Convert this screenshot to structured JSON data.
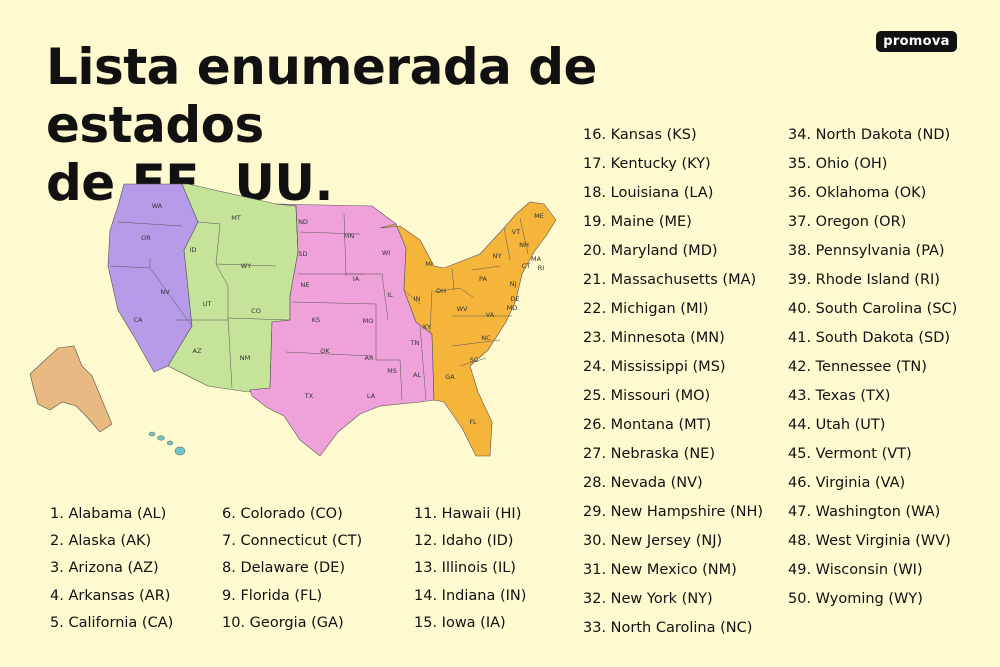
{
  "brand": {
    "logo_text": "promova"
  },
  "title": {
    "line1": "Lista enumerada de estados",
    "line2": "de EE. UU."
  },
  "colors": {
    "background": "#FEF9CF",
    "pacific": "#B69BE9",
    "mountain": "#C6E39A",
    "central": "#EFA2D9",
    "eastern": "#F5B53A",
    "alaska": "#E8B980",
    "hawaii": "#6FC7C6"
  },
  "map": {
    "state_labels": [
      "WA",
      "OR",
      "CA",
      "NV",
      "ID",
      "MT",
      "WY",
      "UT",
      "CO",
      "AZ",
      "NM",
      "ND",
      "SD",
      "NE",
      "KS",
      "OK",
      "TX",
      "MN",
      "IA",
      "MO",
      "AR",
      "LA",
      "WI",
      "IL",
      "MS",
      "AL",
      "TN",
      "KY",
      "IN",
      "MI",
      "OH",
      "GA",
      "FL",
      "SC",
      "NC",
      "VA",
      "WV",
      "PA",
      "NY",
      "VT",
      "NH",
      "ME",
      "MA",
      "CT",
      "RI",
      "NJ",
      "DE",
      "MD"
    ]
  },
  "states": [
    "1. Alabama (AL)",
    "2. Alaska (AK)",
    "3. Arizona (AZ)",
    "4. Arkansas (AR)",
    "5. California (CA)",
    "6. Colorado (CO)",
    "7. Connecticut (CT)",
    "8. Delaware (DE)",
    "9. Florida (FL)",
    "10. Georgia (GA)",
    "11. Hawaii (HI)",
    "12. Idaho (ID)",
    "13. Illinois (IL)",
    "14. Indiana (IN)",
    "15. Iowa (IA)",
    "16. Kansas (KS)",
    "17. Kentucky (KY)",
    "18. Louisiana (LA)",
    "19. Maine (ME)",
    "20. Maryland (MD)",
    "21. Massachusetts (MA)",
    "22. Michigan (MI)",
    "23. Minnesota (MN)",
    "24. Mississippi (MS)",
    "25. Missouri (MO)",
    "26. Montana (MT)",
    "27. Nebraska (NE)",
    "28. Nevada (NV)",
    "29. New Hampshire (NH)",
    "30. New Jersey (NJ)",
    "31. New Mexico (NM)",
    "32. New York (NY)",
    "33. North Carolina (NC)",
    "34. North Dakota (ND)",
    "35. Ohio (OH)",
    "36. Oklahoma (OK)",
    "37. Oregon (OR)",
    "38. Pennsylvania (PA)",
    "39. Rhode Island (RI)",
    "40. South Carolina (SC)",
    "41. South Dakota (SD)",
    "42. Tennessee (TN)",
    "43. Texas (TX)",
    "44. Utah (UT)",
    "45. Vermont (VT)",
    "46. Virginia (VA)",
    "47. Washington (WA)",
    "48. West Virginia (WV)",
    "49. Wisconsin (WI)",
    "50. Wyoming (WY)"
  ]
}
